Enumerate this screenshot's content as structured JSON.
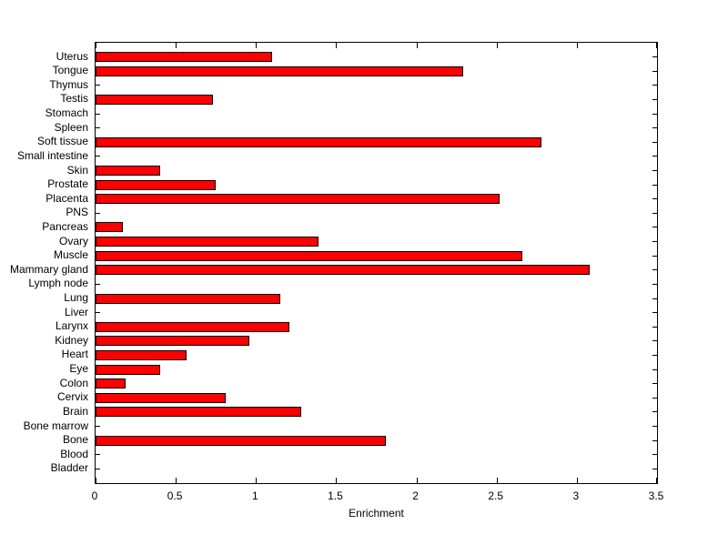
{
  "chart_data": {
    "type": "bar",
    "orientation": "horizontal",
    "title": "",
    "xlabel": "Enrichment",
    "ylabel": "",
    "xlim": [
      0,
      3.5
    ],
    "xticks": [
      0,
      0.5,
      1,
      1.5,
      2,
      2.5,
      3,
      3.5
    ],
    "xtick_labels": [
      "0",
      "0.5",
      "1",
      "1.5",
      "2",
      "2.5",
      "3",
      "3.5"
    ],
    "grid": false,
    "legend": null,
    "box": true,
    "bar_color": "#ff0000",
    "bar_edge_color": "#000000",
    "axis_color": "#000000",
    "background_color": "#ffffff",
    "categories_top_to_bottom": [
      "Uterus",
      "Tongue",
      "Thymus",
      "Testis",
      "Stomach",
      "Spleen",
      "Soft tissue",
      "Small intestine",
      "Skin",
      "Prostate",
      "Placenta",
      "PNS",
      "Pancreas",
      "Ovary",
      "Muscle",
      "Mammary gland",
      "Lymph node",
      "Lung",
      "Liver",
      "Larynx",
      "Kidney",
      "Heart",
      "Eye",
      "Colon",
      "Cervix",
      "Brain",
      "Bone marrow",
      "Bone",
      "Blood",
      "Bladder"
    ],
    "values": [
      1.1,
      2.29,
      0,
      0.73,
      0,
      0,
      2.78,
      0,
      0.4,
      0.75,
      2.52,
      0,
      0.17,
      1.39,
      2.66,
      3.08,
      0,
      1.15,
      0,
      1.21,
      0.96,
      0.57,
      0.4,
      0.19,
      0.81,
      1.28,
      0,
      1.81,
      0,
      0
    ]
  }
}
